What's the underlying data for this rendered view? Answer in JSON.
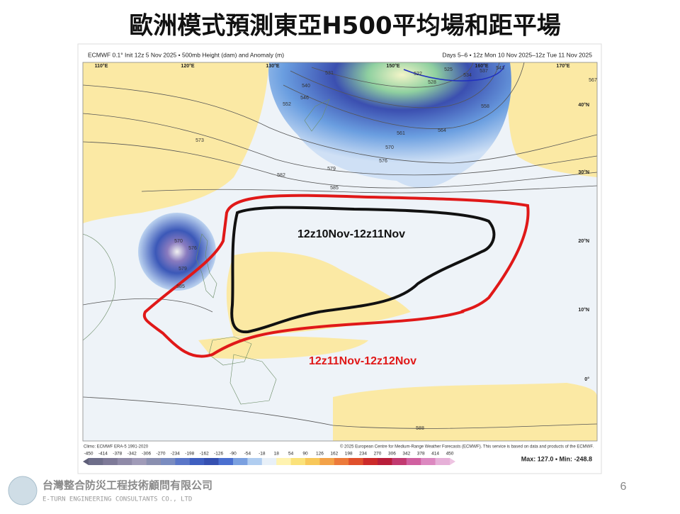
{
  "slide": {
    "title": "歐洲模式預測東亞H500平均場和距平場",
    "page_number": "6"
  },
  "map": {
    "header_left": "ECMWF 0.1° Init 12z 5 Nov 2025 • 500mb Height (dam) and Anomaly (m)",
    "header_right": "Days 5–6 • 12z Mon 10 Nov 2025–12z Tue 11 Nov 2025",
    "lon_labels": [
      "110°E",
      "120°E",
      "130°E",
      "150°E",
      "160°E",
      "170°E"
    ],
    "lat_labels": [
      "40°N",
      "30°N",
      "20°N",
      "10°N",
      "0°"
    ],
    "contour_labels": [
      573,
      582,
      585,
      579,
      576,
      570,
      564,
      561,
      552,
      546,
      540,
      531,
      522,
      528,
      525,
      534,
      537,
      543,
      558,
      567,
      588,
      585,
      579,
      570,
      576
    ],
    "annotations": [
      "12z10Nov-12z11Nov",
      "12z11Nov-12z12Nov"
    ],
    "colorbar_ticks": [
      -450,
      -414,
      -378,
      -342,
      -306,
      -270,
      -234,
      -198,
      -162,
      -126,
      -90,
      -54,
      -18,
      18,
      54,
      90,
      126,
      162,
      198,
      234,
      270,
      306,
      342,
      378,
      414,
      450
    ],
    "stats": "Max: 127.0 • Min: -248.8",
    "climo": "Climo: ECMWF ERA-5 1991-2020",
    "copyright": "© 2025 European Centre for Medium-Range Weather Forecasts (ECMWF). This service is based on data and products of the ECMWF."
  },
  "footer": {
    "company_zh": "台灣整合防災工程技術顧問有限公司",
    "company_en": "E-TURN ENGINEERING CONSULTANTS CO., LTD"
  }
}
